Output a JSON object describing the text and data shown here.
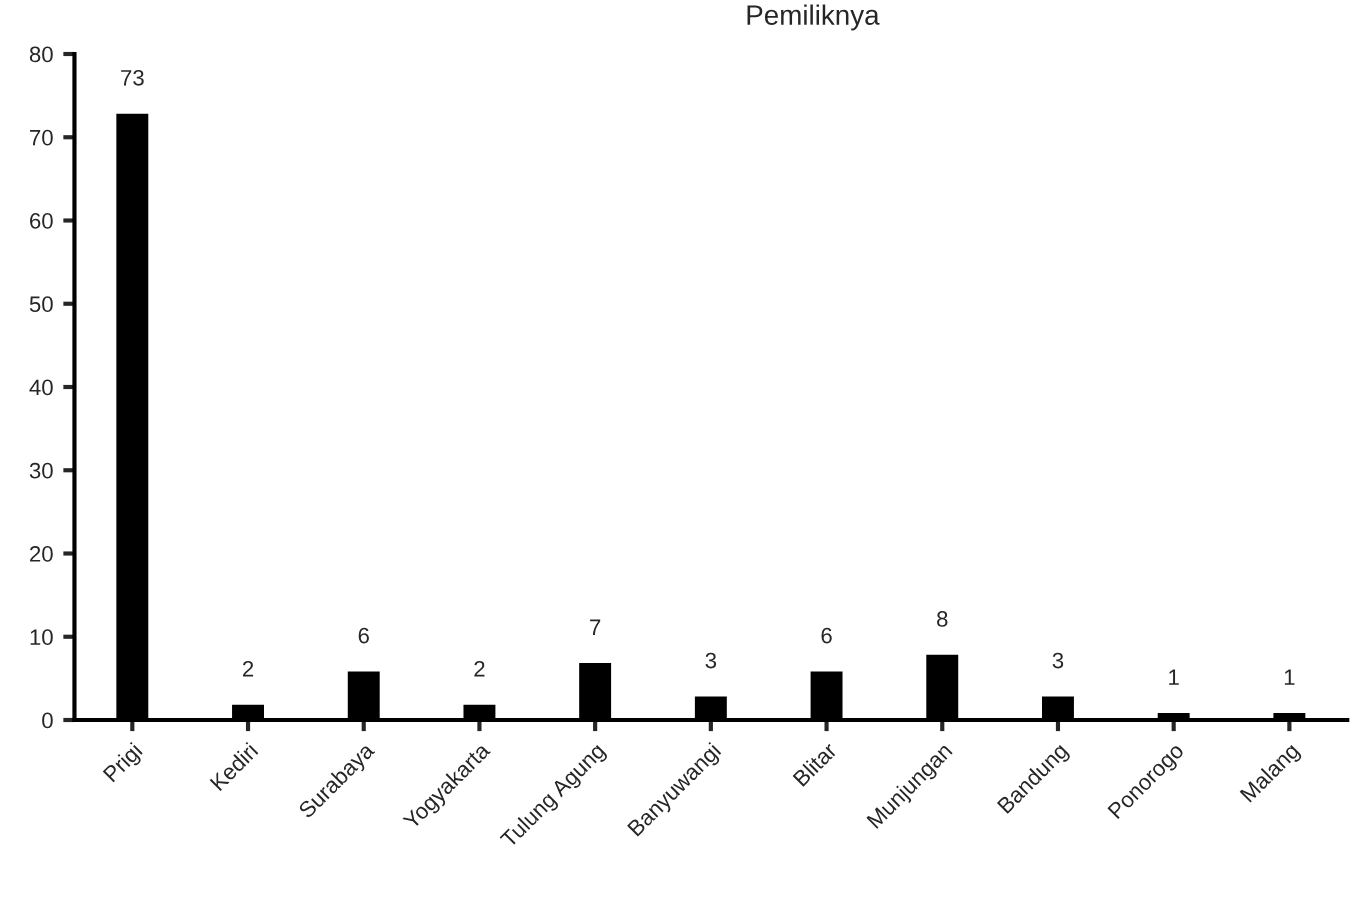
{
  "chart_data": {
    "type": "bar",
    "title": "Pemiliknya",
    "categories": [
      "Prigi",
      "Kediri",
      "Surabaya",
      "Yogyakarta",
      "Tulung Agung",
      "Banyuwangi",
      "Blitar",
      "Munjungan",
      "Bandung",
      "Ponorogo",
      "Malang"
    ],
    "values": [
      73,
      2,
      6,
      2,
      7,
      3,
      6,
      8,
      3,
      1,
      1
    ],
    "color": "#000000",
    "ylim": [
      0,
      80
    ],
    "yticks": [
      0,
      10,
      20,
      30,
      40,
      50,
      60,
      70,
      80
    ],
    "grid": false,
    "data_labels": true
  }
}
